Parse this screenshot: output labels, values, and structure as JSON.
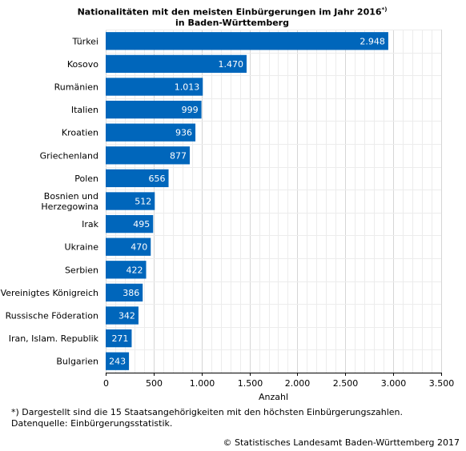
{
  "chart_data": {
    "type": "bar",
    "orientation": "horizontal",
    "title_line1": "Nationalitäten mit den meisten Einbürgerungen im Jahr 2016",
    "title_marker": "*)",
    "title_line2": "in Baden-Württemberg",
    "xlabel": "Anzahl",
    "xlim": [
      0,
      3500
    ],
    "xticks": [
      0,
      500,
      1000,
      1500,
      2000,
      2500,
      3000,
      3500
    ],
    "xtick_labels": [
      "0",
      "500",
      "1.000",
      "1.500",
      "2.000",
      "2.500",
      "3.000",
      "3.500"
    ],
    "grid": true,
    "bar_color": "#0066bb",
    "categories": [
      [
        "Türkei"
      ],
      [
        "Kosovo"
      ],
      [
        "Rumänien"
      ],
      [
        "Italien"
      ],
      [
        "Kroatien"
      ],
      [
        "Griechenland"
      ],
      [
        "Polen"
      ],
      [
        "Bosnien und",
        "Herzegowina"
      ],
      [
        "Irak"
      ],
      [
        "Ukraine"
      ],
      [
        "Serbien"
      ],
      [
        "Vereinigtes Königreich"
      ],
      [
        "Russische Föderation"
      ],
      [
        "Iran, Islam. Republik"
      ],
      [
        "Bulgarien"
      ]
    ],
    "values": [
      2948,
      1470,
      1013,
      999,
      936,
      877,
      656,
      512,
      495,
      470,
      422,
      386,
      342,
      271,
      243
    ],
    "value_labels": [
      "2.948",
      "1.470",
      "1.013",
      "999",
      "936",
      "877",
      "656",
      "512",
      "495",
      "470",
      "422",
      "386",
      "342",
      "271",
      "243"
    ]
  },
  "footnote_line1": "*) Dargestellt sind die 15 Staatsangehörigkeiten mit den höchsten Einbürgerungszahlen.",
  "footnote_line2": "Datenquelle: Einbürgerungsstatistik.",
  "copyright": "© Statistisches Landesamt Baden-Württemberg 2017"
}
